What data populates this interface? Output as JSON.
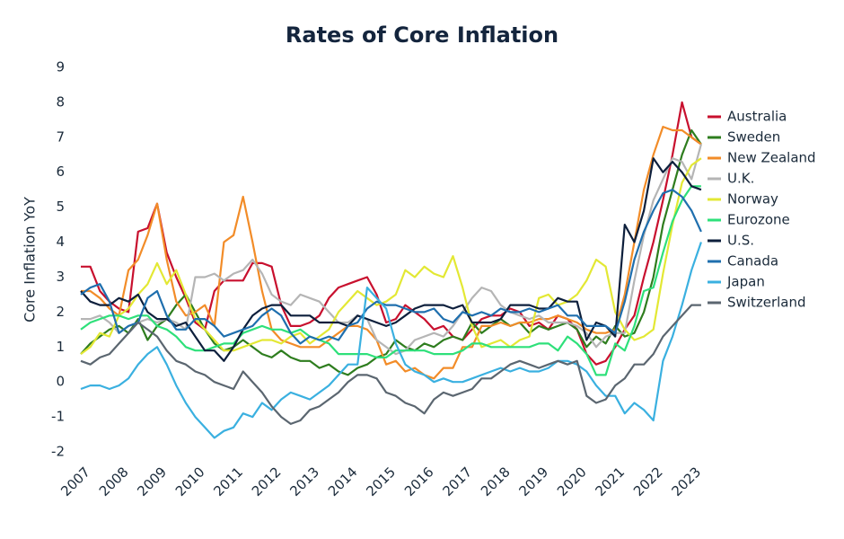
{
  "chart_data": {
    "type": "line",
    "title": "Rates of Core Inflation",
    "y_label": "Core Inflation YoY",
    "x": [
      2007,
      2007.25,
      2007.5,
      2007.75,
      2008,
      2008.25,
      2008.5,
      2008.75,
      2009,
      2009.25,
      2009.5,
      2009.75,
      2010,
      2010.25,
      2010.5,
      2010.75,
      2011,
      2011.25,
      2011.5,
      2011.75,
      2012,
      2012.25,
      2012.5,
      2012.75,
      2013,
      2013.25,
      2013.5,
      2013.75,
      2014,
      2014.25,
      2014.5,
      2014.75,
      2015,
      2015.25,
      2015.5,
      2015.75,
      2016,
      2016.25,
      2016.5,
      2016.75,
      2017,
      2017.25,
      2017.5,
      2017.75,
      2018,
      2018.25,
      2018.5,
      2018.75,
      2019,
      2019.25,
      2019.5,
      2019.75,
      2020,
      2020.25,
      2020.5,
      2020.75,
      2021,
      2021.25,
      2021.5,
      2021.75,
      2022,
      2022.25,
      2022.5,
      2022.75,
      2023,
      2023.25
    ],
    "xlim": [
      2007,
      2023.3
    ],
    "xticks": [
      2007,
      2008,
      2009,
      2010,
      2011,
      2012,
      2013,
      2014,
      2015,
      2016,
      2017,
      2018,
      2019,
      2020,
      2021,
      2022,
      2023
    ],
    "ylim": [
      -2,
      9
    ],
    "yticks": [
      -2,
      -1,
      0,
      1,
      2,
      3,
      4,
      5,
      6,
      7,
      8,
      9
    ],
    "grid": false,
    "series": [
      {
        "name": "Australia",
        "color": "#c8102e",
        "values": [
          3.3,
          3.3,
          2.6,
          2.3,
          2.1,
          2.0,
          4.3,
          4.4,
          5.1,
          3.7,
          3.0,
          2.4,
          1.7,
          1.5,
          2.6,
          2.9,
          2.9,
          2.9,
          3.4,
          3.4,
          3.3,
          2.2,
          1.6,
          1.6,
          1.7,
          1.9,
          2.4,
          2.7,
          2.8,
          2.9,
          3.0,
          2.5,
          1.7,
          1.8,
          2.2,
          2.0,
          1.8,
          1.5,
          1.6,
          1.3,
          1.2,
          1.5,
          1.8,
          1.9,
          1.9,
          2.1,
          2.0,
          1.6,
          1.7,
          1.5,
          1.9,
          1.8,
          1.5,
          0.8,
          0.5,
          0.6,
          1.0,
          1.5,
          1.9,
          3.0,
          4.0,
          5.2,
          6.5,
          8.0,
          7.0,
          6.8
        ]
      },
      {
        "name": "Sweden",
        "color": "#2e7d1e",
        "values": [
          0.8,
          1.1,
          1.3,
          1.5,
          1.6,
          1.4,
          1.8,
          1.2,
          1.6,
          1.8,
          2.2,
          2.5,
          2.0,
          1.5,
          1.1,
          0.9,
          1.0,
          1.2,
          1.0,
          0.8,
          0.7,
          0.9,
          0.7,
          0.6,
          0.6,
          0.4,
          0.5,
          0.3,
          0.2,
          0.4,
          0.5,
          0.7,
          0.8,
          1.2,
          1.0,
          0.9,
          1.1,
          1.0,
          1.2,
          1.3,
          1.2,
          1.7,
          1.4,
          1.6,
          1.8,
          1.6,
          1.7,
          1.4,
          1.6,
          1.5,
          1.6,
          1.7,
          1.5,
          1.0,
          1.3,
          1.1,
          1.6,
          1.3,
          1.4,
          2.0,
          3.0,
          4.5,
          5.5,
          6.5,
          7.2,
          6.8
        ]
      },
      {
        "name": "New Zealand",
        "color": "#f28c28",
        "values": [
          2.6,
          2.6,
          2.4,
          2.1,
          1.9,
          3.2,
          3.5,
          4.2,
          5.1,
          3.5,
          2.3,
          1.9,
          2.0,
          2.2,
          1.6,
          4.0,
          4.2,
          5.3,
          4.0,
          2.6,
          1.5,
          1.2,
          1.1,
          1.0,
          1.0,
          1.0,
          1.2,
          1.4,
          1.6,
          1.6,
          1.5,
          1.2,
          0.5,
          0.6,
          0.3,
          0.4,
          0.2,
          0.1,
          0.4,
          0.4,
          1.0,
          1.0,
          1.6,
          1.6,
          1.7,
          1.6,
          1.7,
          1.7,
          1.8,
          1.8,
          1.9,
          1.8,
          1.7,
          1.5,
          1.4,
          1.4,
          1.5,
          2.5,
          4.0,
          5.5,
          6.5,
          7.3,
          7.2,
          7.2,
          7.0,
          6.8
        ]
      },
      {
        "name": "U.K.",
        "color": "#b5b5b5",
        "values": [
          1.8,
          1.8,
          1.9,
          1.7,
          1.4,
          1.6,
          1.7,
          1.8,
          1.7,
          1.8,
          1.7,
          1.5,
          3.0,
          3.0,
          3.1,
          2.9,
          3.1,
          3.2,
          3.5,
          3.1,
          2.5,
          2.3,
          2.2,
          2.5,
          2.4,
          2.3,
          2.0,
          1.7,
          1.7,
          1.9,
          1.8,
          1.2,
          1.0,
          0.8,
          0.9,
          1.2,
          1.3,
          1.4,
          1.3,
          1.6,
          2.0,
          2.4,
          2.7,
          2.6,
          2.2,
          2.0,
          1.9,
          1.8,
          1.9,
          1.7,
          1.7,
          1.7,
          1.6,
          1.4,
          1.0,
          1.3,
          1.4,
          1.4,
          2.9,
          4.2,
          5.2,
          5.8,
          6.4,
          6.3,
          5.8,
          6.8
        ]
      },
      {
        "name": "Norway",
        "color": "#e3e834",
        "values": [
          0.8,
          1.0,
          1.4,
          1.3,
          1.9,
          2.1,
          2.5,
          2.8,
          3.4,
          2.8,
          3.2,
          2.5,
          1.8,
          1.5,
          1.2,
          0.9,
          0.9,
          1.0,
          1.1,
          1.2,
          1.2,
          1.1,
          1.3,
          1.4,
          1.1,
          1.3,
          1.5,
          2.0,
          2.3,
          2.6,
          2.4,
          2.2,
          2.3,
          2.5,
          3.2,
          3.0,
          3.3,
          3.1,
          3.0,
          3.6,
          2.7,
          1.6,
          1.0,
          1.1,
          1.2,
          1.0,
          1.2,
          1.3,
          2.4,
          2.5,
          2.2,
          2.3,
          2.5,
          2.9,
          3.5,
          3.3,
          2.0,
          1.5,
          1.2,
          1.3,
          1.5,
          3.1,
          4.5,
          5.7,
          6.2,
          6.4
        ]
      },
      {
        "name": "Eurozone",
        "color": "#2ee07a",
        "values": [
          1.5,
          1.7,
          1.8,
          1.9,
          1.9,
          1.8,
          1.9,
          1.9,
          1.6,
          1.5,
          1.3,
          1.0,
          0.9,
          0.9,
          1.0,
          1.1,
          1.1,
          1.4,
          1.5,
          1.6,
          1.5,
          1.5,
          1.4,
          1.5,
          1.3,
          1.2,
          1.1,
          0.8,
          0.8,
          0.8,
          0.8,
          0.7,
          0.7,
          0.9,
          0.9,
          0.9,
          0.9,
          0.8,
          0.8,
          0.8,
          0.9,
          1.1,
          1.1,
          1.0,
          1.0,
          1.0,
          1.0,
          1.0,
          1.1,
          1.1,
          0.9,
          1.3,
          1.1,
          0.8,
          0.2,
          0.2,
          1.1,
          0.9,
          1.6,
          2.6,
          2.7,
          3.7,
          4.6,
          5.2,
          5.6,
          5.6
        ]
      },
      {
        "name": "U.S.",
        "color": "#0d1f3c",
        "values": [
          2.6,
          2.3,
          2.2,
          2.2,
          2.4,
          2.3,
          2.5,
          2.0,
          1.8,
          1.8,
          1.6,
          1.7,
          1.3,
          0.9,
          0.9,
          0.6,
          1.0,
          1.5,
          1.9,
          2.1,
          2.2,
          2.2,
          1.9,
          1.9,
          1.9,
          1.7,
          1.7,
          1.7,
          1.6,
          1.9,
          1.8,
          1.7,
          1.6,
          1.7,
          1.9,
          2.1,
          2.2,
          2.2,
          2.2,
          2.1,
          2.2,
          1.7,
          1.7,
          1.7,
          1.8,
          2.2,
          2.2,
          2.2,
          2.1,
          2.1,
          2.4,
          2.3,
          2.3,
          1.2,
          1.7,
          1.6,
          1.3,
          4.5,
          4.0,
          4.9,
          6.4,
          6.0,
          6.3,
          6.0,
          5.6,
          5.5
        ]
      },
      {
        "name": "Canada",
        "color": "#1f6fae",
        "values": [
          2.5,
          2.7,
          2.8,
          2.3,
          1.4,
          1.6,
          1.7,
          2.4,
          2.6,
          1.9,
          1.5,
          1.5,
          1.8,
          1.8,
          1.6,
          1.3,
          1.4,
          1.5,
          1.6,
          1.9,
          2.1,
          1.9,
          1.4,
          1.1,
          1.3,
          1.2,
          1.3,
          1.2,
          1.6,
          1.7,
          2.1,
          2.3,
          2.2,
          2.2,
          2.1,
          2.0,
          2.0,
          2.1,
          1.8,
          1.7,
          2.0,
          1.9,
          2.0,
          1.9,
          2.1,
          2.0,
          2.0,
          2.1,
          2.0,
          2.1,
          2.2,
          1.9,
          1.9,
          1.6,
          1.6,
          1.6,
          1.4,
          2.3,
          3.5,
          4.3,
          4.9,
          5.4,
          5.5,
          5.3,
          4.9,
          4.3
        ]
      },
      {
        "name": "Japan",
        "color": "#3ab0e0",
        "values": [
          -0.2,
          -0.1,
          -0.1,
          -0.2,
          -0.1,
          0.1,
          0.5,
          0.8,
          1.0,
          0.5,
          -0.1,
          -0.6,
          -1.0,
          -1.3,
          -1.6,
          -1.4,
          -1.3,
          -0.9,
          -1.0,
          -0.6,
          -0.8,
          -0.5,
          -0.3,
          -0.4,
          -0.5,
          -0.3,
          -0.1,
          0.2,
          0.5,
          0.5,
          2.7,
          2.4,
          2.1,
          1.1,
          0.5,
          0.3,
          0.2,
          0.0,
          0.1,
          0.0,
          0.0,
          0.1,
          0.2,
          0.3,
          0.4,
          0.3,
          0.4,
          0.3,
          0.3,
          0.4,
          0.6,
          0.6,
          0.5,
          0.3,
          -0.1,
          -0.4,
          -0.4,
          -0.9,
          -0.6,
          -0.8,
          -1.1,
          0.6,
          1.3,
          2.2,
          3.2,
          4.0
        ]
      },
      {
        "name": "Switzerland",
        "color": "#5b6670",
        "values": [
          0.6,
          0.5,
          0.7,
          0.8,
          1.1,
          1.4,
          1.7,
          1.5,
          1.3,
          0.9,
          0.6,
          0.5,
          0.3,
          0.2,
          0.0,
          -0.1,
          -0.2,
          0.3,
          0.0,
          -0.3,
          -0.7,
          -1.0,
          -1.2,
          -1.1,
          -0.8,
          -0.7,
          -0.5,
          -0.3,
          0.0,
          0.2,
          0.2,
          0.1,
          -0.3,
          -0.4,
          -0.6,
          -0.7,
          -0.9,
          -0.5,
          -0.3,
          -0.4,
          -0.3,
          -0.2,
          0.1,
          0.1,
          0.3,
          0.5,
          0.6,
          0.5,
          0.4,
          0.5,
          0.6,
          0.5,
          0.6,
          -0.4,
          -0.6,
          -0.5,
          -0.1,
          0.1,
          0.5,
          0.5,
          0.8,
          1.3,
          1.6,
          1.9,
          2.2,
          2.2
        ]
      }
    ]
  }
}
